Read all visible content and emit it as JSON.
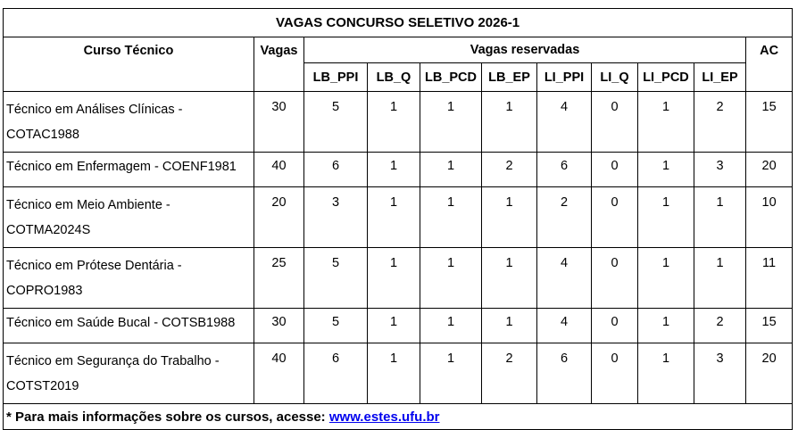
{
  "title": "VAGAS CONCURSO SELETIVO 2026-1",
  "headers": {
    "curso": "Curso Técnico",
    "vagas": "Vagas",
    "reservadas": "Vagas reservadas",
    "ac": "AC",
    "sub": [
      "LB_PPI",
      "LB_Q",
      "LB_PCD",
      "LB_EP",
      "LI_PPI",
      "LI_Q",
      "LI_PCD",
      "LI_EP"
    ]
  },
  "rows": [
    {
      "curso": "Técnico em Análises Clínicas - COTAC1988",
      "vagas": "30",
      "res": [
        "5",
        "1",
        "1",
        "1",
        "4",
        "0",
        "1",
        "2"
      ],
      "ac": "15"
    },
    {
      "curso": "Técnico em Enfermagem - COENF1981",
      "vagas": "40",
      "res": [
        "6",
        "1",
        "1",
        "2",
        "6",
        "0",
        "1",
        "3"
      ],
      "ac": "20"
    },
    {
      "curso": "Técnico em Meio Ambiente - COTMA2024S",
      "vagas": "20",
      "res": [
        "3",
        "1",
        "1",
        "1",
        "2",
        "0",
        "1",
        "1"
      ],
      "ac": "10"
    },
    {
      "curso": "Técnico em Prótese Dentária - COPRO1983",
      "vagas": "25",
      "res": [
        "5",
        "1",
        "1",
        "1",
        "4",
        "0",
        "1",
        "1"
      ],
      "ac": "11"
    },
    {
      "curso": "Técnico em Saúde Bucal - COTSB1988",
      "vagas": "30",
      "res": [
        "5",
        "1",
        "1",
        "1",
        "4",
        "0",
        "1",
        "2"
      ],
      "ac": "15"
    },
    {
      "curso": "Técnico em Segurança do Trabalho - COTST2019",
      "vagas": "40",
      "res": [
        "6",
        "1",
        "1",
        "2",
        "6",
        "0",
        "1",
        "3"
      ],
      "ac": "20"
    }
  ],
  "footer": {
    "text": "* Para mais informações sobre os cursos, acesse: ",
    "link": "www.estes.ufu.br"
  },
  "colors": {
    "border": "#000000",
    "link": "#0000ee"
  }
}
